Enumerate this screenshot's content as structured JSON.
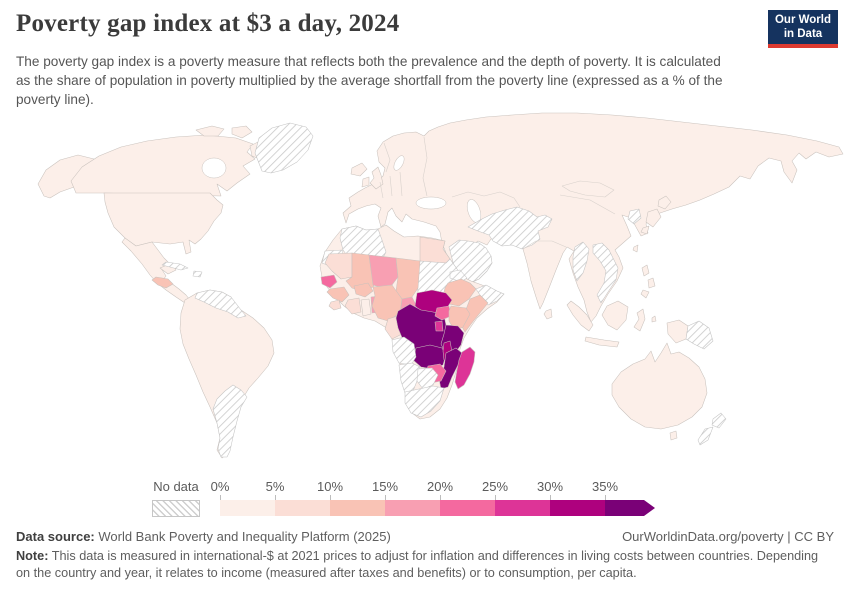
{
  "header": {
    "title": "Poverty gap index at $3 a day, 2024",
    "subtitle": "The poverty gap index is a poverty measure that reflects both the prevalence and the depth of poverty. It is calculated as the share of population in poverty multiplied by the average shortfall from the poverty line (expressed as a % of the poverty line)."
  },
  "logo": {
    "line1": "Our World",
    "line2": "in Data",
    "bg": "#15335f",
    "bar": "#dd3a30"
  },
  "footer": {
    "datasource_label": "Data source:",
    "datasource": " World Bank Poverty and Inequality Platform (2025)",
    "link": "OurWorldinData.org/poverty | CC BY",
    "note_label": "Note:",
    "note": " This data is measured in international-$ at 2021 prices to adjust for inflation and differences in living costs between countries. Depending on the country and year, it relates to income (measured after taxes and benefits) or to consumption, per capita."
  },
  "chart_data": {
    "type": "choropleth-map",
    "title": "Poverty gap index at $3 a day, 2024",
    "year": "2024",
    "unit": "% (poverty gap index)",
    "legend": {
      "no_data_label": "No data",
      "no_data_pattern": "diagonal-hatch",
      "tick_labels": [
        "0%",
        "5%",
        "10%",
        "15%",
        "20%",
        "25%",
        "30%",
        "35%"
      ],
      "bin_ranges": [
        "0-5%",
        "5-10%",
        "10-15%",
        "15-20%",
        "20-25%",
        "25-30%",
        "30-35%",
        "35%+"
      ],
      "colors": [
        "#fcefe9",
        "#fbded6",
        "#f9c3b5",
        "#f89fb2",
        "#f4699f",
        "#dd3497",
        "#ae017e",
        "#7a0177"
      ],
      "arrow_on_last_bin": true
    },
    "regions": [
      {
        "name": "United States",
        "bin": 1
      },
      {
        "name": "Canada",
        "bin": 1
      },
      {
        "name": "Greenland",
        "bin": "no-data"
      },
      {
        "name": "Mexico & Central America",
        "bin": 1
      },
      {
        "name": "Honduras",
        "bin": 3
      },
      {
        "name": "Cuba",
        "bin": "no-data"
      },
      {
        "name": "Haiti",
        "bin": "no-data"
      },
      {
        "name": "South America (Brazil & Andean countries)",
        "bin": 1
      },
      {
        "name": "Venezuela & Guyanas",
        "bin": "no-data"
      },
      {
        "name": "Argentina",
        "bin": "no-data"
      },
      {
        "name": "Europe & mainland Asia",
        "bin": 1
      },
      {
        "name": "Iceland",
        "bin": 1
      },
      {
        "name": "United Kingdom",
        "bin": 1
      },
      {
        "name": "Ireland",
        "bin": 1
      },
      {
        "name": "Saudi Arabia, Yemen & Oman",
        "bin": "no-data"
      },
      {
        "name": "Iran, Afghanistan & Turkmenistan",
        "bin": "no-data"
      },
      {
        "name": "Myanmar",
        "bin": "no-data"
      },
      {
        "name": "Vietnam & Laos",
        "bin": "no-data"
      },
      {
        "name": "North Korea",
        "bin": "no-data"
      },
      {
        "name": "Japan",
        "bin": 1
      },
      {
        "name": "Taiwan",
        "bin": 1
      },
      {
        "name": "Philippines",
        "bin": 1
      },
      {
        "name": "Sri Lanka",
        "bin": 1
      },
      {
        "name": "Indonesia",
        "bin": 1
      },
      {
        "name": "Papua New Guinea",
        "bin": "no-data"
      },
      {
        "name": "Australia",
        "bin": 1
      },
      {
        "name": "New Zealand",
        "bin": "no-data"
      },
      {
        "name": "Africa (other countries)",
        "bin": 1
      },
      {
        "name": "Western Sahara",
        "bin": "no-data"
      },
      {
        "name": "Algeria",
        "bin": "no-data"
      },
      {
        "name": "Egypt",
        "bin": 2
      },
      {
        "name": "Sudan & South Sudan",
        "bin": "no-data"
      },
      {
        "name": "Eritrea & Djibouti",
        "bin": "no-data"
      },
      {
        "name": "Ethiopia",
        "bin": 3
      },
      {
        "name": "Somaliland",
        "bin": "no-data"
      },
      {
        "name": "Somalia",
        "bin": 3
      },
      {
        "name": "Kenya",
        "bin": 3
      },
      {
        "name": "Uganda",
        "bin": 5
      },
      {
        "name": "Rwanda & Burundi",
        "bin": 6
      },
      {
        "name": "Mauritania",
        "bin": 2
      },
      {
        "name": "Senegal",
        "bin": 5
      },
      {
        "name": "Guinea",
        "bin": 3
      },
      {
        "name": "Sierra Leone",
        "bin": 2
      },
      {
        "name": "Côte d'Ivoire",
        "bin": 2
      },
      {
        "name": "Ghana",
        "bin": 1
      },
      {
        "name": "Togo & Benin",
        "bin": 4
      },
      {
        "name": "Burkina Faso",
        "bin": 3
      },
      {
        "name": "Mali",
        "bin": 3
      },
      {
        "name": "Niger",
        "bin": 4
      },
      {
        "name": "Chad",
        "bin": 3
      },
      {
        "name": "Nigeria",
        "bin": 3
      },
      {
        "name": "Cameroon",
        "bin": 4
      },
      {
        "name": "Central African Republic",
        "bin": 7
      },
      {
        "name": "Gabon & Congo",
        "bin": 2
      },
      {
        "name": "Democratic Republic of Congo",
        "bin": 8
      },
      {
        "name": "Tanzania",
        "bin": 8
      },
      {
        "name": "Zambia",
        "bin": 8
      },
      {
        "name": "Malawi",
        "bin": 7
      },
      {
        "name": "Mozambique",
        "bin": 8
      },
      {
        "name": "Zimbabwe",
        "bin": 5
      },
      {
        "name": "Madagascar",
        "bin": 6
      },
      {
        "name": "Angola",
        "bin": "no-data"
      },
      {
        "name": "Namibia",
        "bin": "no-data"
      },
      {
        "name": "Botswana",
        "bin": "no-data"
      },
      {
        "name": "South Africa",
        "bin": "no-data"
      }
    ]
  }
}
